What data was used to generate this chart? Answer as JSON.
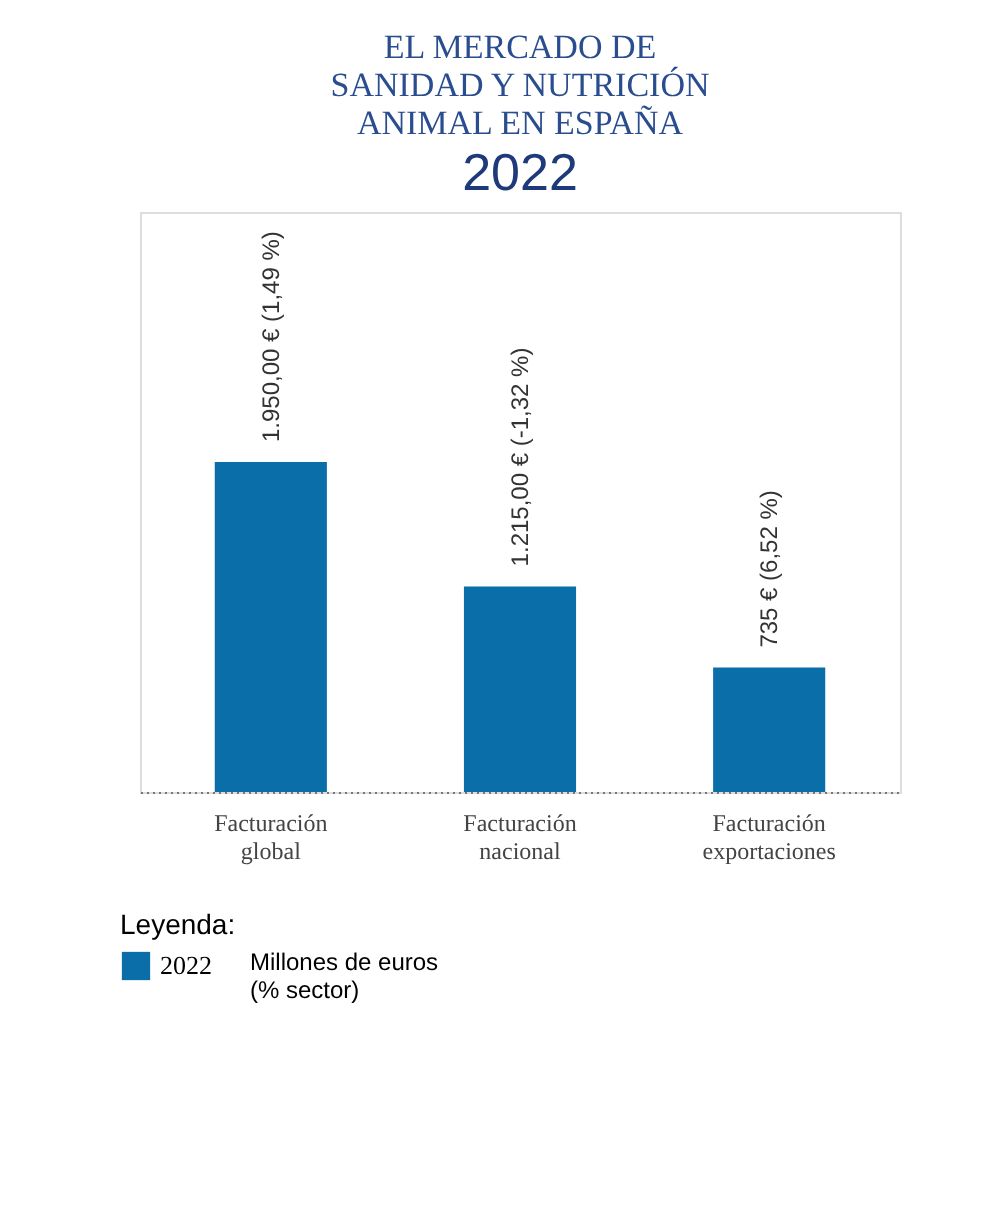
{
  "chart_data": {
    "type": "bar",
    "title": "EL MERCADO DE SANIDAD Y NUTRICIÓN ANIMAL EN ESPAÑA",
    "subtitle": "2022",
    "categories": [
      "Facturación global",
      "Facturación nacional",
      "Facturación exportaciones"
    ],
    "series": [
      {
        "name": "2022",
        "color": "#0a6ea8",
        "values": [
          1950,
          1215,
          735
        ],
        "value_labels": [
          "1.950,00 € (1,49 %)",
          "1.215,00 € (-1,32 %)",
          "735 € (6,52 %)"
        ]
      }
    ],
    "legend_title": "Leyenda:",
    "legend": "bottom left",
    "grid": false,
    "annotations": [
      "Millones de euros (% sector)"
    ]
  }
}
